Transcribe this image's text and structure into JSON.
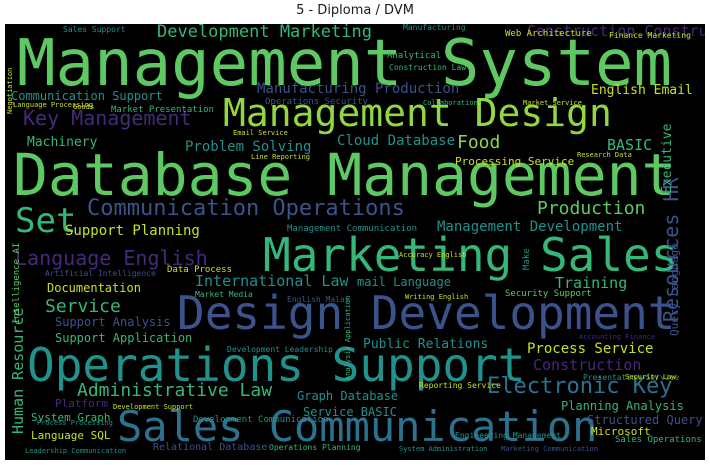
{
  "title": "5 - Diploma / DVM",
  "cloud": {
    "background": "#000000",
    "palette": {
      "green": "#5ec962",
      "teal": "#21918c",
      "lightgreen": "#90d743",
      "yellow": "#c8e020",
      "blue": "#3b528b",
      "purple": "#482878",
      "darkteal": "#2c728e",
      "seagreen": "#35b779"
    },
    "words": [
      {
        "text": "Management System",
        "size": 64,
        "color": "#5ec962",
        "vertical": false
      },
      {
        "text": "Database Management",
        "size": 58,
        "color": "#5ec962",
        "vertical": false
      },
      {
        "text": "Management Design",
        "size": 38,
        "color": "#90d743",
        "vertical": false
      },
      {
        "text": "Marketing Sales",
        "size": 46,
        "color": "#35b779",
        "vertical": false
      },
      {
        "text": "Design Development",
        "size": 46,
        "color": "#3b528b",
        "vertical": false
      },
      {
        "text": "Operations Support",
        "size": 46,
        "color": "#21918c",
        "vertical": false
      },
      {
        "text": "Sales Communication",
        "size": 42,
        "color": "#2c728e",
        "vertical": false
      },
      {
        "text": "Communication Operations",
        "size": 22,
        "color": "#3b528b",
        "vertical": false
      },
      {
        "text": "Set",
        "size": 34,
        "color": "#35b779",
        "vertical": false
      },
      {
        "text": "Key Management",
        "size": 20,
        "color": "#482878",
        "vertical": false
      },
      {
        "text": "Language English",
        "size": 20,
        "color": "#482878",
        "vertical": false
      },
      {
        "text": "Development Marketing",
        "size": 17,
        "color": "#35b779",
        "vertical": false
      },
      {
        "text": "Construction Construction",
        "size": 15,
        "color": "#482878",
        "vertical": false
      },
      {
        "text": "Manufacturing Production",
        "size": 14,
        "color": "#3b528b",
        "vertical": false
      },
      {
        "text": "Communication Support",
        "size": 12,
        "color": "#21918c",
        "vertical": false
      },
      {
        "text": "English Email",
        "size": 13,
        "color": "#c8e020",
        "vertical": false
      },
      {
        "text": "Cloud Database",
        "size": 14,
        "color": "#21918c",
        "vertical": false
      },
      {
        "text": "Problem Solving",
        "size": 14,
        "color": "#21918c",
        "vertical": false
      },
      {
        "text": "Machinery",
        "size": 13,
        "color": "#35b779",
        "vertical": false
      },
      {
        "text": "Food",
        "size": 18,
        "color": "#90d743",
        "vertical": false
      },
      {
        "text": "BASIC",
        "size": 15,
        "color": "#35b779",
        "vertical": false
      },
      {
        "text": "Processing Service",
        "size": 11,
        "color": "#c8e020",
        "vertical": false
      },
      {
        "text": "Production",
        "size": 18,
        "color": "#5ec962",
        "vertical": false
      },
      {
        "text": "Management Development",
        "size": 14,
        "color": "#21918c",
        "vertical": false
      },
      {
        "text": "Support Planning",
        "size": 14,
        "color": "#c8e020",
        "vertical": false
      },
      {
        "text": "International Law",
        "size": 15,
        "color": "#21918c",
        "vertical": false
      },
      {
        "text": "mail Language",
        "size": 12,
        "color": "#21918c",
        "vertical": false
      },
      {
        "text": "Training",
        "size": 15,
        "color": "#35b779",
        "vertical": false
      },
      {
        "text": "Documentation",
        "size": 12,
        "color": "#c8e020",
        "vertical": false
      },
      {
        "text": "Service",
        "size": 18,
        "color": "#35b779",
        "vertical": false
      },
      {
        "text": "Support Analysis",
        "size": 12,
        "color": "#3b528b",
        "vertical": false
      },
      {
        "text": "Support Application",
        "size": 12,
        "color": "#35b779",
        "vertical": false
      },
      {
        "text": "Public Relations",
        "size": 13,
        "color": "#21918c",
        "vertical": false
      },
      {
        "text": "Process Service",
        "size": 14,
        "color": "#c8e020",
        "vertical": false
      },
      {
        "text": "Construction",
        "size": 15,
        "color": "#482878",
        "vertical": false
      },
      {
        "text": "Administrative Law",
        "size": 18,
        "color": "#35b779",
        "vertical": false
      },
      {
        "text": "Electronic Key",
        "size": 22,
        "color": "#2c728e",
        "vertical": false
      },
      {
        "text": "Graph Database",
        "size": 12,
        "color": "#21918c",
        "vertical": false
      },
      {
        "text": "Service BASIC",
        "size": 12,
        "color": "#21918c",
        "vertical": false
      },
      {
        "text": "Planning Analysis",
        "size": 12,
        "color": "#35b779",
        "vertical": false
      },
      {
        "text": "Structured Query",
        "size": 12,
        "color": "#3b528b",
        "vertical": false
      },
      {
        "text": "Microsoft",
        "size": 11,
        "color": "#c8e020",
        "vertical": false
      },
      {
        "text": "System Graph",
        "size": 11,
        "color": "#35b779",
        "vertical": false
      },
      {
        "text": "Platform",
        "size": 11,
        "color": "#482878",
        "vertical": false
      },
      {
        "text": "Language SQL",
        "size": 11,
        "color": "#c8e020",
        "vertical": false
      },
      {
        "text": "Relational Database",
        "size": 10,
        "color": "#3b528b",
        "vertical": false
      },
      {
        "text": "Development Communication",
        "size": 9,
        "color": "#21918c",
        "vertical": false
      },
      {
        "text": "Sales Operations",
        "size": 9,
        "color": "#35b779",
        "vertical": false
      },
      {
        "text": "Web Architecture",
        "size": 9,
        "color": "#c8e020",
        "vertical": false
      },
      {
        "text": "Analytical",
        "size": 9,
        "color": "#35b779",
        "vertical": false
      },
      {
        "text": "Market Presentation",
        "size": 9,
        "color": "#35b779",
        "vertical": false
      },
      {
        "text": "Operations Security",
        "size": 9,
        "color": "#3b528b",
        "vertical": false
      },
      {
        "text": "Management Communication",
        "size": 9,
        "color": "#21918c",
        "vertical": false
      },
      {
        "text": "Data Process",
        "size": 9,
        "color": "#c8e020",
        "vertical": false
      },
      {
        "text": "Security Support",
        "size": 9,
        "color": "#5ec962",
        "vertical": false
      },
      {
        "text": "Market Media",
        "size": 8,
        "color": "#35b779",
        "vertical": false
      },
      {
        "text": "English Malay",
        "size": 8,
        "color": "#3b528b",
        "vertical": false
      },
      {
        "text": "Presentation Service",
        "size": 8,
        "color": "#21918c",
        "vertical": false
      },
      {
        "text": "Reporting Service",
        "size": 8,
        "color": "#c8e020",
        "vertical": false
      },
      {
        "text": "Sales Support",
        "size": 8,
        "color": "#21918c",
        "vertical": false
      },
      {
        "text": "Manufacturing",
        "size": 8,
        "color": "#21918c",
        "vertical": false
      },
      {
        "text": "Finance Marketing",
        "size": 8,
        "color": "#c8e020",
        "vertical": false
      },
      {
        "text": "Construction Law",
        "size": 8,
        "color": "#35b779",
        "vertical": false
      },
      {
        "text": "Market Service",
        "size": 7,
        "color": "#c8e020",
        "vertical": false
      },
      {
        "text": "Research Data",
        "size": 7,
        "color": "#c8e020",
        "vertical": false
      },
      {
        "text": "Artificial Intelligence",
        "size": 8,
        "color": "#3b528b",
        "vertical": false
      },
      {
        "text": "Development Leadership",
        "size": 8,
        "color": "#21918c",
        "vertical": false
      },
      {
        "text": "Engineering Management",
        "size": 8,
        "color": "#21918c",
        "vertical": false
      },
      {
        "text": "Development Support",
        "size": 7,
        "color": "#c8e020",
        "vertical": false
      },
      {
        "text": "Leadership Communication",
        "size": 7,
        "color": "#21918c",
        "vertical": false
      },
      {
        "text": "Operations Planning",
        "size": 8,
        "color": "#35b779",
        "vertical": false
      },
      {
        "text": "System Administration",
        "size": 7,
        "color": "#21918c",
        "vertical": false
      },
      {
        "text": "Marketing Communication",
        "size": 7,
        "color": "#3b528b",
        "vertical": false
      },
      {
        "text": "Security Law",
        "size": 7,
        "color": "#c8e020",
        "vertical": false
      },
      {
        "text": "Accuracy English",
        "size": 7,
        "color": "#c8e020",
        "vertical": false
      },
      {
        "text": "Writing English",
        "size": 7,
        "color": "#c8e020",
        "vertical": false
      },
      {
        "text": "Process Processing",
        "size": 7,
        "color": "#21918c",
        "vertical": false
      },
      {
        "text": "Accounting Finance",
        "size": 7,
        "color": "#482878",
        "vertical": false
      },
      {
        "text": "Goods",
        "size": 7,
        "color": "#c8e020",
        "vertical": false
      },
      {
        "text": "Language Processing",
        "size": 7,
        "color": "#c8e020",
        "vertical": false
      },
      {
        "text": "Email Service",
        "size": 7,
        "color": "#c8e020",
        "vertical": false
      },
      {
        "text": "Line Reporting",
        "size": 7,
        "color": "#c8e020",
        "vertical": false
      },
      {
        "text": "Collaboration",
        "size": 7,
        "color": "#35b779",
        "vertical": false
      },
      {
        "text": "Human Resource",
        "size": 15,
        "color": "#35b779",
        "vertical": true
      },
      {
        "text": "Resources HR",
        "size": 20,
        "color": "#3b528b",
        "vertical": true
      },
      {
        "text": "Executive",
        "size": 13,
        "color": "#35b779",
        "vertical": true
      },
      {
        "text": "Query Language",
        "size": 11,
        "color": "#3b528b",
        "vertical": true
      },
      {
        "text": "Make",
        "size": 9,
        "color": "#21918c",
        "vertical": true
      },
      {
        "text": "Intelligence AI",
        "size": 9,
        "color": "#5ec962",
        "vertical": true
      },
      {
        "text": "Negotiation",
        "size": 7,
        "color": "#c8e020",
        "vertical": true
      },
      {
        "text": "Analysis Application",
        "size": 7,
        "color": "#35b779",
        "vertical": true
      }
    ]
  }
}
